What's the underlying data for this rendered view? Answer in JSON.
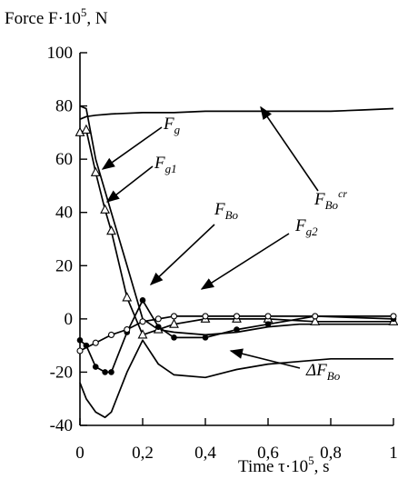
{
  "chart_data": {
    "type": "line",
    "ylabel": "Force F·10⁵, N",
    "ylabel_text": "Force F·10",
    "ylabel_exp": "5",
    "ylabel_unit": ", N",
    "xlabel": "Time τ·10⁵, s",
    "xlabel_text": "Time τ·10",
    "xlabel_exp": "5",
    "xlabel_unit": ", s",
    "xlim": [
      0,
      1
    ],
    "ylim": [
      -40,
      100
    ],
    "grid": false,
    "xticks": [
      0,
      0.2,
      0.4,
      0.6,
      0.8,
      1
    ],
    "xtick_labels": [
      "0",
      "0,2",
      "0,4",
      "0,6",
      "0,8",
      "1"
    ],
    "yticks": [
      -40,
      -20,
      0,
      20,
      40,
      60,
      80,
      100
    ],
    "ytick_labels": [
      "-40",
      "-20",
      "0",
      "20",
      "40",
      "60",
      "80",
      "100"
    ],
    "series": [
      {
        "name": "F_Bo^cr",
        "base": "F",
        "subscript": "Bo",
        "superscript": "cr",
        "marker": "none",
        "x": [
          0,
          0.02,
          0.05,
          0.1,
          0.2,
          0.3,
          0.4,
          0.5,
          0.6,
          0.7,
          0.8,
          0.9,
          1.0
        ],
        "y": [
          75,
          76,
          76.5,
          77,
          77.5,
          77.5,
          78,
          78,
          78,
          78,
          78,
          78.5,
          79
        ]
      },
      {
        "name": "F_g",
        "base": "F",
        "subscript": "g",
        "marker": "none",
        "x": [
          0,
          0.02,
          0.05,
          0.1,
          0.15,
          0.2,
          0.25,
          0.3,
          0.4,
          0.5,
          0.6,
          0.7,
          0.8,
          0.9,
          1.0
        ],
        "y": [
          80,
          79,
          60,
          40,
          20,
          0,
          -4,
          -5,
          -6,
          -5,
          -3,
          -2,
          -2,
          -2,
          -2
        ]
      },
      {
        "name": "F_g1",
        "base": "F",
        "subscript": "g1",
        "marker": "triangle",
        "x": [
          0,
          0.02,
          0.05,
          0.08,
          0.1,
          0.15,
          0.2,
          0.25,
          0.3,
          0.4,
          0.5,
          0.6,
          0.75,
          1.0
        ],
        "y": [
          70,
          71,
          55,
          41,
          33,
          8,
          -6,
          -4,
          -2,
          0,
          0,
          0,
          -1,
          -1
        ]
      },
      {
        "name": "F_Bo",
        "base": "F",
        "subscript": "Bo",
        "marker": "dot",
        "x": [
          0,
          0.02,
          0.05,
          0.08,
          0.1,
          0.15,
          0.2,
          0.25,
          0.3,
          0.4,
          0.5,
          0.6,
          0.75,
          1.0
        ],
        "y": [
          -8,
          -10,
          -18,
          -20,
          -20,
          -5,
          7,
          -3,
          -7,
          -7,
          -4,
          -2,
          1,
          0
        ]
      },
      {
        "name": "F_g2",
        "base": "F",
        "subscript": "g2",
        "marker": "circle",
        "x": [
          0,
          0.05,
          0.1,
          0.15,
          0.2,
          0.25,
          0.3,
          0.4,
          0.5,
          0.6,
          0.75,
          1.0
        ],
        "y": [
          -12,
          -9,
          -6,
          -4,
          -1,
          0,
          1,
          1,
          1,
          1,
          1,
          1
        ]
      },
      {
        "name": "ΔF_Bo",
        "base": "ΔF",
        "subscript": "Bo",
        "marker": "none",
        "x": [
          0,
          0.02,
          0.05,
          0.08,
          0.1,
          0.15,
          0.2,
          0.25,
          0.3,
          0.4,
          0.5,
          0.6,
          0.7,
          0.8,
          0.9,
          1.0
        ],
        "y": [
          -24,
          -30,
          -35,
          -37,
          -35,
          -20,
          -8,
          -17,
          -21,
          -22,
          -19,
          -17,
          -16,
          -15,
          -15,
          -15
        ]
      }
    ]
  },
  "colors": {
    "line": "#000000",
    "background": "#ffffff"
  }
}
